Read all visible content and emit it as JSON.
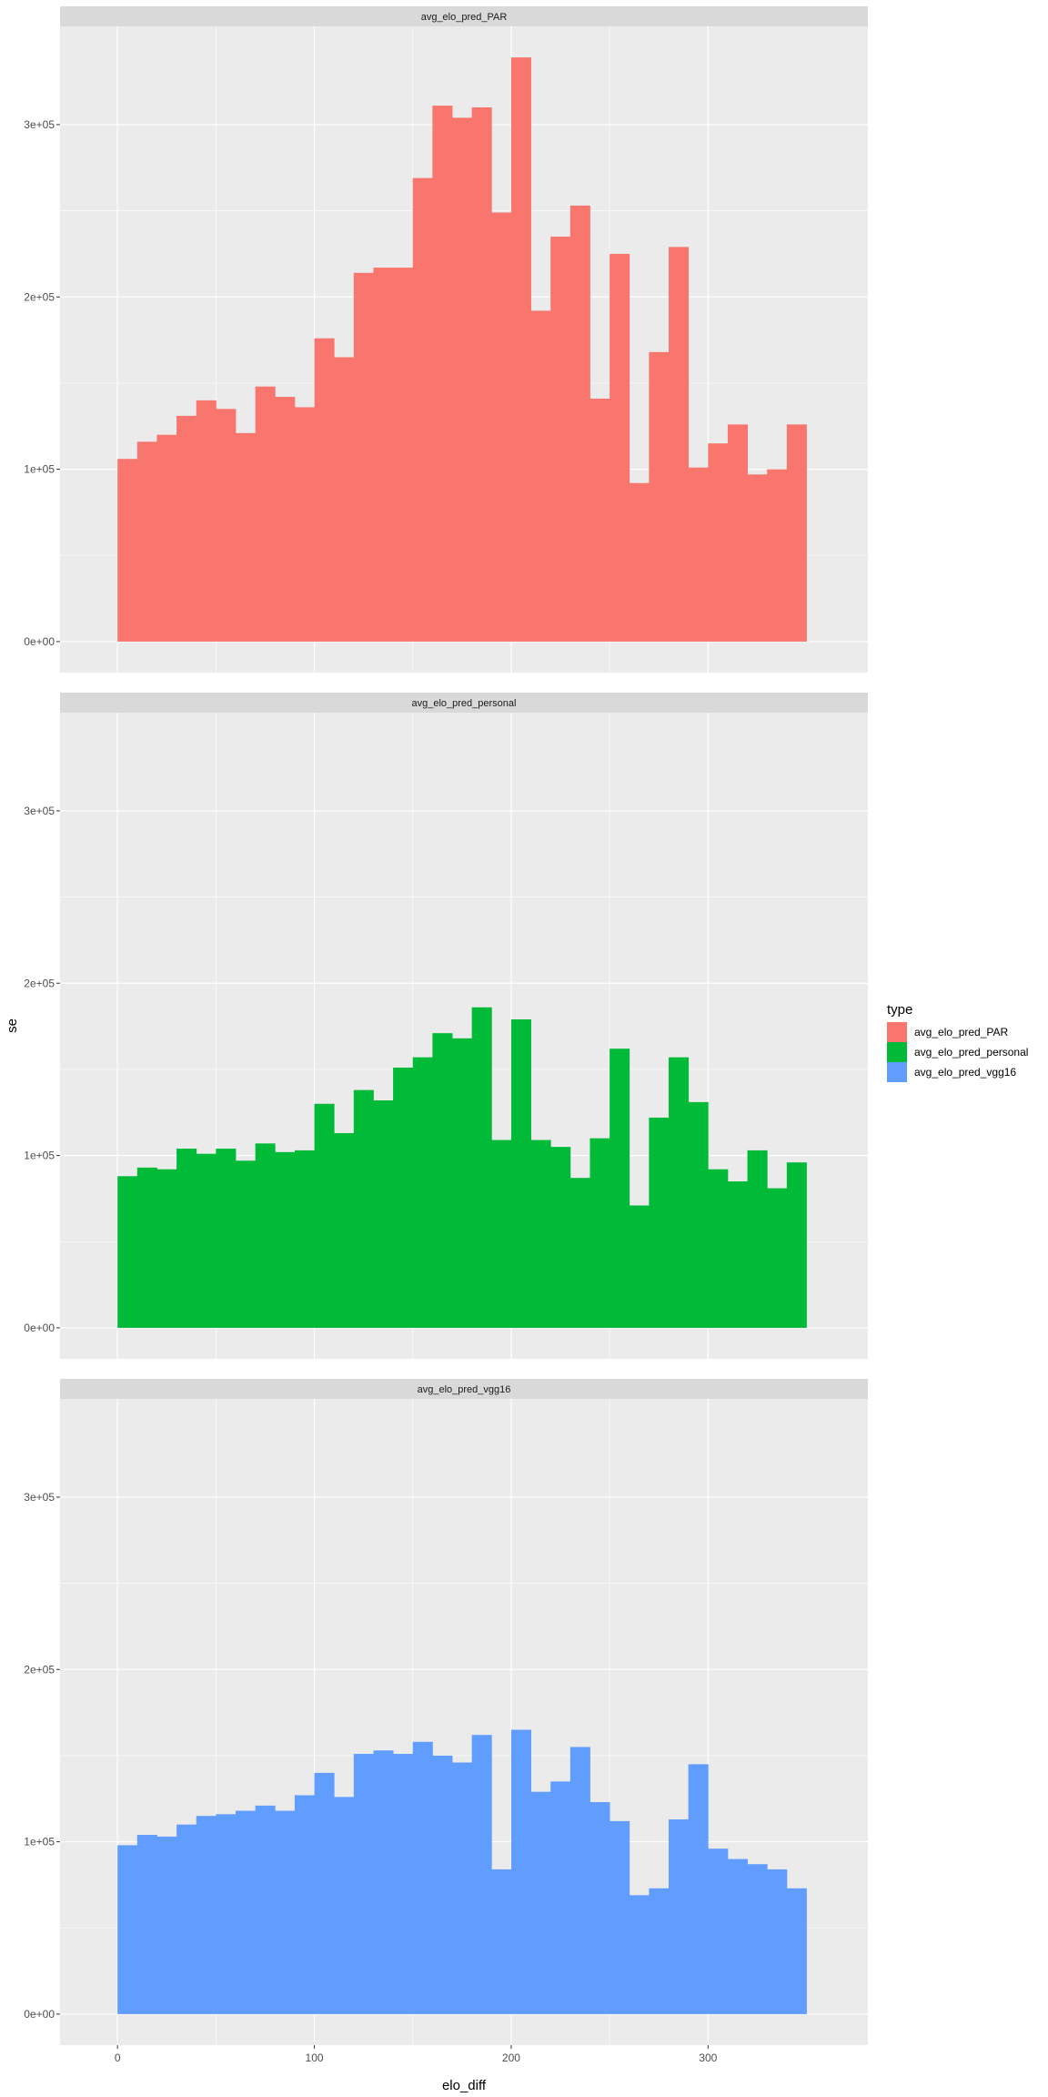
{
  "chart_data": {
    "type": "bar",
    "xlabel": "elo_diff",
    "ylabel": "se",
    "xlim": [
      -29.2,
      381.2
    ],
    "ylim": [
      -18000,
      357000
    ],
    "x_ticks": [
      0,
      100,
      200,
      300
    ],
    "x_tick_labels": [
      "0",
      "100",
      "200",
      "300"
    ],
    "y_ticks": [
      0,
      100000,
      200000,
      300000
    ],
    "y_tick_labels": [
      "0e+00",
      "1e+05",
      "2e+05",
      "3e+05"
    ],
    "grid": true,
    "legend": {
      "title": "type",
      "position": "right",
      "entries": [
        {
          "label": "avg_elo_pred_PAR",
          "color": "#F8766D"
        },
        {
          "label": "avg_elo_pred_personal",
          "color": "#00BA38"
        },
        {
          "label": "avg_elo_pred_vgg16",
          "color": "#619CFF"
        }
      ]
    },
    "bin_left_edges": [
      0,
      10,
      20,
      30,
      40,
      50,
      60,
      70,
      80,
      90,
      100,
      110,
      120,
      130,
      140,
      150,
      160,
      170,
      180,
      190,
      200,
      210,
      220,
      230,
      240,
      250,
      260,
      270,
      280,
      290,
      300,
      310,
      320,
      330,
      340
    ],
    "bin_width": 10,
    "panels": [
      {
        "strip": "avg_elo_pred_PAR",
        "color": "#F8766D",
        "values": [
          106000,
          116000,
          120000,
          131000,
          140000,
          135000,
          121000,
          148000,
          142000,
          136000,
          176000,
          165000,
          214000,
          217000,
          217000,
          269000,
          311000,
          304000,
          310000,
          249000,
          339000,
          192000,
          235000,
          253000,
          141000,
          225000,
          92000,
          168000,
          229000,
          101000,
          115000,
          126000,
          97000,
          100000,
          126000
        ]
      },
      {
        "strip": "avg_elo_pred_personal",
        "color": "#00BA38",
        "values": [
          88000,
          93000,
          92000,
          104000,
          101000,
          104000,
          97000,
          107000,
          102000,
          103000,
          130000,
          113000,
          138000,
          132000,
          151000,
          157000,
          171000,
          168000,
          186000,
          109000,
          179000,
          109000,
          105000,
          87000,
          110000,
          162000,
          71000,
          122000,
          157000,
          131000,
          92000,
          85000,
          103000,
          81000,
          96000
        ]
      },
      {
        "strip": "avg_elo_pred_vgg16",
        "color": "#619CFF",
        "values": [
          98000,
          104000,
          103000,
          110000,
          115000,
          116000,
          118000,
          121000,
          118000,
          127000,
          140000,
          126000,
          151000,
          153000,
          151000,
          158000,
          150000,
          146000,
          162000,
          84000,
          165000,
          129000,
          135000,
          155000,
          123000,
          112000,
          69000,
          73000,
          113000,
          145000,
          96000,
          90000,
          87000,
          84000,
          73000
        ]
      }
    ]
  }
}
